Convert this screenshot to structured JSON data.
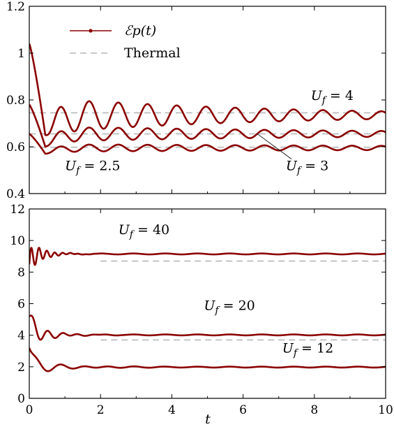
{
  "chart_data": [
    {
      "type": "line",
      "panel": "top",
      "xlabel": "",
      "ylabel": "",
      "xlim": [
        0,
        10
      ],
      "ylim": [
        0.4,
        1.2
      ],
      "xticks": [
        0,
        2,
        4,
        6,
        8,
        10
      ],
      "yticks": [
        0.4,
        0.6,
        0.8,
        1,
        1.2
      ],
      "x_tick_labels_shown": false,
      "legend": {
        "placement": "top-left",
        "entries": [
          {
            "label": "ℰp(t)",
            "style": "dark-red line with dots"
          },
          {
            "label": "Thermal",
            "style": "gray dashed"
          }
        ]
      },
      "series": [
        {
          "label": "Uf = 4",
          "start": 1.04,
          "dip_t": 0.45,
          "dip": 0.65,
          "final": 0.735,
          "osc_amp": 0.075,
          "osc_decay": 0.16,
          "osc_period": 0.82,
          "thermal": 0.745
        },
        {
          "label": "Uf = 3",
          "start": 0.78,
          "dip_t": 0.45,
          "dip": 0.6,
          "final": 0.655,
          "osc_amp": 0.032,
          "osc_decay": 0.1,
          "osc_period": 0.82,
          "thermal": 0.655
        },
        {
          "label": "Uf = 2.5",
          "start": 0.655,
          "dip_t": 0.45,
          "dip": 0.57,
          "final": 0.595,
          "osc_amp": 0.016,
          "osc_decay": 0.06,
          "osc_period": 0.82,
          "thermal": 0.598
        }
      ],
      "annotations": [
        {
          "text": "Uf = 4",
          "x": 7.9,
          "y": 0.8
        },
        {
          "text": "Uf = 3",
          "x": 7.2,
          "y": 0.5,
          "pointer_to": {
            "x": 6.4,
            "y": 0.655
          }
        },
        {
          "text": "Uf = 2.5",
          "x": 1.0,
          "y": 0.5
        }
      ]
    },
    {
      "type": "line",
      "panel": "bottom",
      "xlabel": "t",
      "ylabel": "",
      "xlim": [
        0,
        10
      ],
      "ylim": [
        0,
        12
      ],
      "xticks": [
        0,
        2,
        4,
        6,
        8,
        10
      ],
      "yticks": [
        0,
        2,
        4,
        6,
        8,
        10,
        12
      ],
      "series": [
        {
          "label": "Uf = 40",
          "start": 8.5,
          "final": 9.15,
          "osc_amp": 0.9,
          "osc_decay": 2.8,
          "osc_period": 0.22,
          "thermal": 8.7,
          "thermal_from": 2.0
        },
        {
          "label": "Uf = 20",
          "start": 5.2,
          "final": 4.02,
          "osc_amp": 0.75,
          "osc_decay": 2.0,
          "osc_period": 0.42,
          "thermal": 3.7,
          "thermal_from": 2.0
        },
        {
          "label": "Uf = 12",
          "start": 3.2,
          "final": 1.98,
          "osc_amp": 0.45,
          "osc_decay": 1.1,
          "osc_period": 0.7,
          "thermal": 1.98,
          "thermal_from": 2.0
        }
      ],
      "annotations": [
        {
          "text": "Uf = 40",
          "x": 2.5,
          "y": 10.4
        },
        {
          "text": "Uf = 20",
          "x": 4.9,
          "y": 5.6
        },
        {
          "text": "Uf = 12",
          "x": 7.1,
          "y": 2.9
        }
      ]
    }
  ],
  "labels": {
    "legend_series": "ℰp(t)",
    "legend_thermal": "Thermal",
    "top_ann_4": "Uf = 4",
    "top_ann_3": "Uf = 3",
    "top_ann_25": "Uf = 2.5",
    "bot_ann_40": "Uf = 40",
    "bot_ann_20": "Uf = 20",
    "bot_ann_12": "Uf = 12",
    "xlabel": "t"
  }
}
